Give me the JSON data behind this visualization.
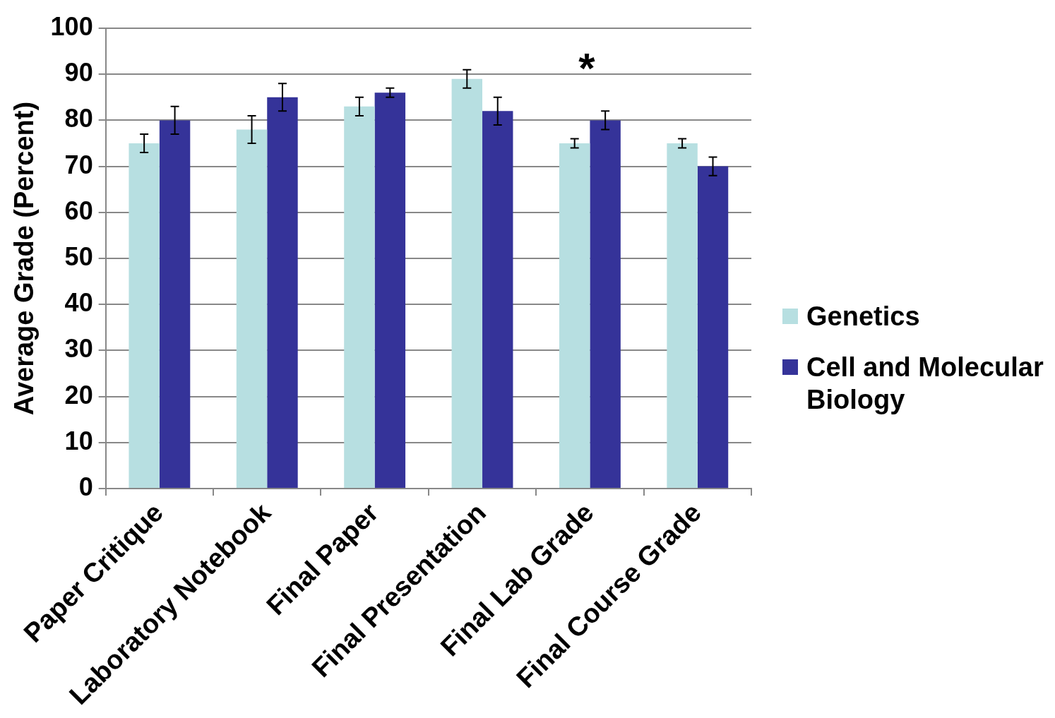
{
  "chart_data": {
    "type": "bar",
    "ylabel": "Average Grade (Percent)",
    "categories": [
      "Paper Critique",
      "Laboratory Notebook",
      "Final Paper",
      "Final Presentation",
      "Final Lab Grade",
      "Final Course Grade"
    ],
    "series": [
      {
        "name": "Genetics",
        "color": "#b7dfe1",
        "values": [
          75,
          78,
          83,
          89,
          75,
          75
        ],
        "errors": [
          2,
          3,
          2,
          2,
          1,
          1
        ]
      },
      {
        "name": "Cell and Molecular Biology",
        "color": "#353399",
        "values": [
          80,
          85,
          86,
          82,
          80,
          70
        ],
        "errors": [
          3,
          3,
          1,
          3,
          2,
          2
        ]
      }
    ],
    "ylim": [
      0,
      100
    ],
    "yticks": [
      0,
      10,
      20,
      30,
      40,
      50,
      60,
      70,
      80,
      90,
      100
    ],
    "grid": "y",
    "legend": "right",
    "annotations": [
      "*"
    ]
  }
}
